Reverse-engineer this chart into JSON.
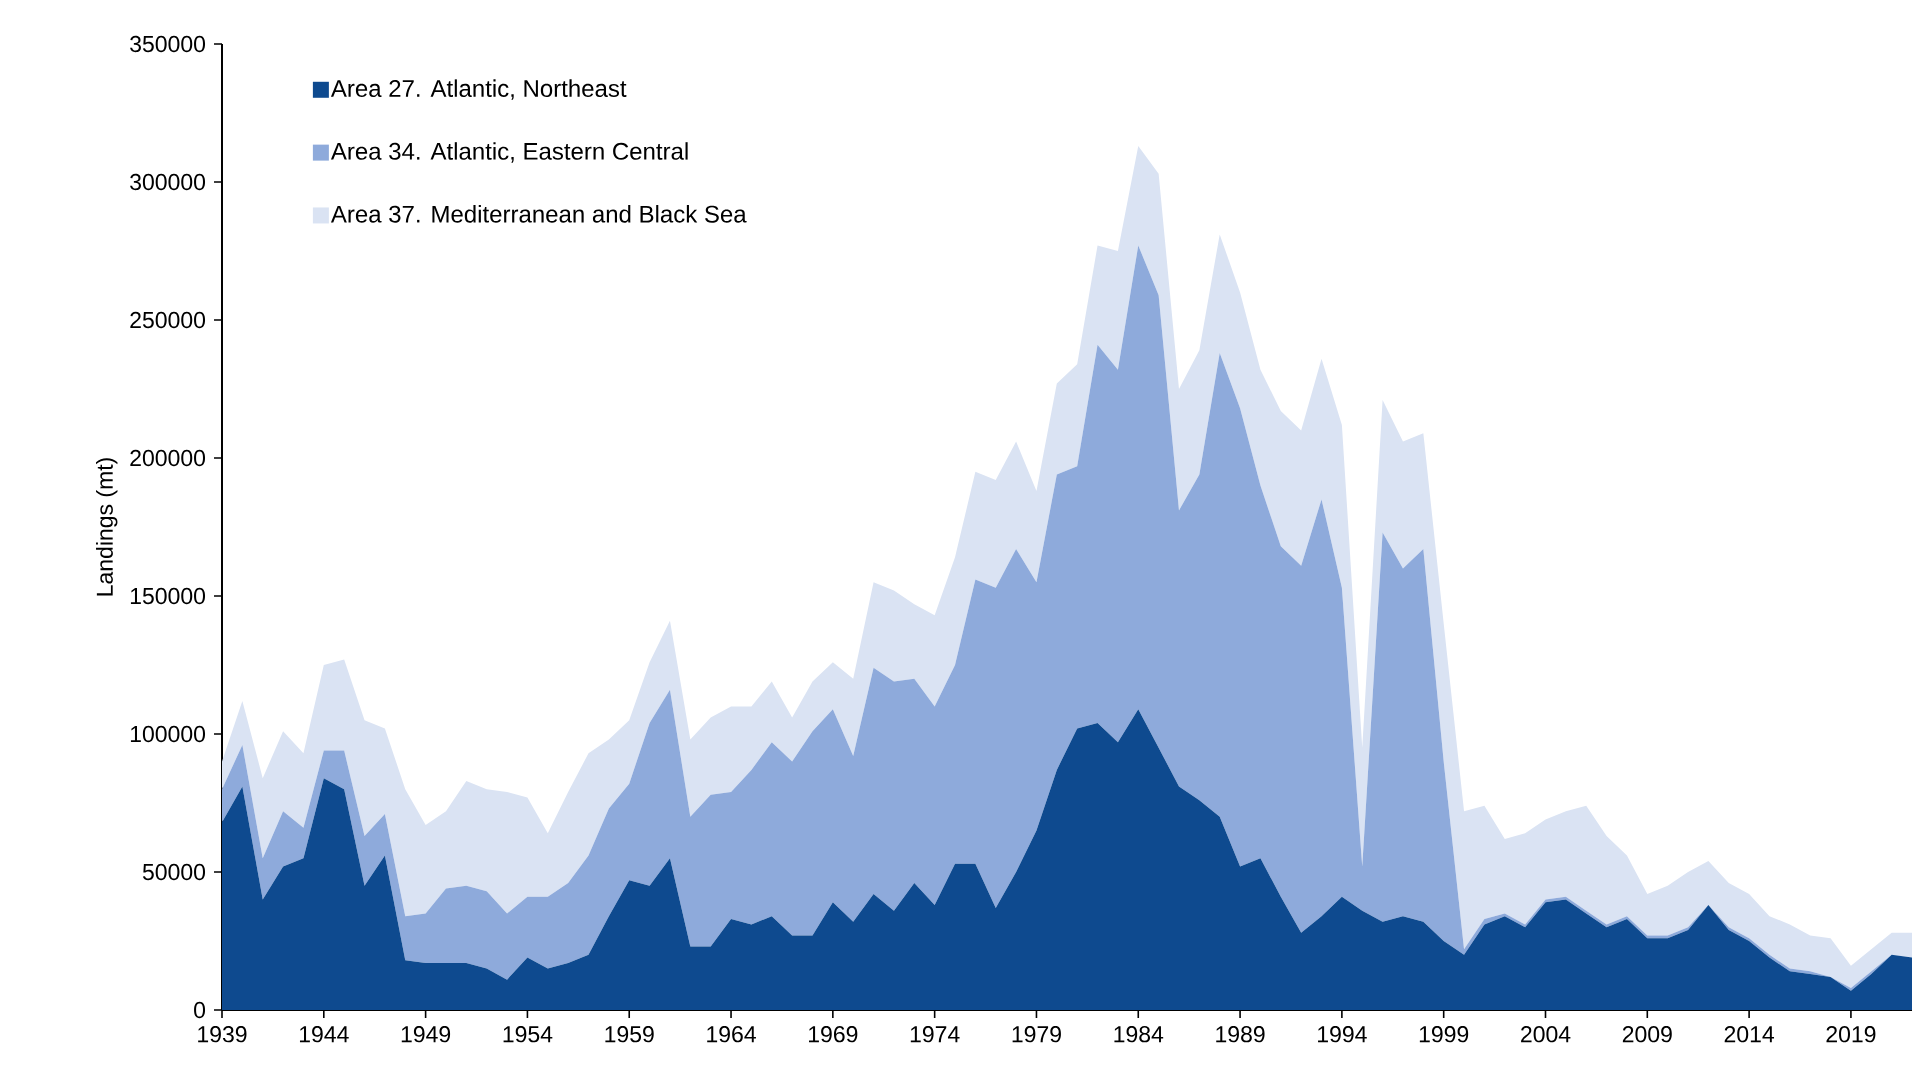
{
  "chart_data": {
    "type": "area",
    "stacked": true,
    "ylabel": "Landings (mt)",
    "x": [
      1939,
      1940,
      1941,
      1942,
      1943,
      1944,
      1945,
      1946,
      1947,
      1948,
      1949,
      1950,
      1951,
      1952,
      1953,
      1954,
      1955,
      1956,
      1957,
      1958,
      1959,
      1960,
      1961,
      1962,
      1963,
      1964,
      1965,
      1966,
      1967,
      1968,
      1969,
      1970,
      1971,
      1972,
      1973,
      1974,
      1975,
      1976,
      1977,
      1978,
      1979,
      1980,
      1981,
      1982,
      1983,
      1984,
      1985,
      1986,
      1987,
      1988,
      1989,
      1990,
      1991,
      1992,
      1993,
      1994,
      1995,
      1996,
      1997,
      1998,
      1999,
      2000,
      2001,
      2002,
      2003,
      2004,
      2005,
      2006,
      2007,
      2008,
      2009,
      2010,
      2011,
      2012,
      2013,
      2014,
      2015,
      2016,
      2017,
      2018,
      2019,
      2020,
      2021,
      2022
    ],
    "xlim": [
      1939,
      2022
    ],
    "xticks": [
      1939,
      1944,
      1949,
      1954,
      1959,
      1964,
      1969,
      1974,
      1979,
      1984,
      1989,
      1994,
      1999,
      2004,
      2009,
      2014,
      2019
    ],
    "ylim": [
      0,
      350000
    ],
    "yticks": [
      0,
      50000,
      100000,
      150000,
      200000,
      250000,
      300000,
      350000
    ],
    "legend": "top left",
    "series": [
      {
        "name": "Area 27. Atlantic, Northeast",
        "color": "#0e4a8f",
        "values": [
          68000,
          81000,
          40000,
          52000,
          55000,
          84000,
          80000,
          45000,
          56000,
          18000,
          17000,
          17000,
          17000,
          15000,
          11000,
          19000,
          15000,
          17000,
          20000,
          34000,
          47000,
          45000,
          55000,
          23000,
          23000,
          33000,
          31000,
          34000,
          27000,
          27000,
          39000,
          32000,
          42000,
          36000,
          46000,
          38000,
          53000,
          53000,
          37000,
          50000,
          65000,
          87000,
          102000,
          104000,
          97000,
          109000,
          95000,
          81000,
          76000,
          70000,
          52000,
          55000,
          41000,
          28000,
          34000,
          41000,
          36000,
          32000,
          34000,
          32000,
          25000,
          20000,
          31000,
          34000,
          30000,
          39000,
          40000,
          35000,
          30000,
          33000,
          26000,
          26000,
          29000,
          38000,
          29000,
          25000,
          19000,
          14000,
          13000,
          12000,
          7000,
          13000,
          20000,
          19000
        ]
      },
      {
        "name": "Area 34. Atlantic, Eastern Central",
        "color": "#8eaadb",
        "values": [
          12000,
          15000,
          15000,
          20000,
          11000,
          10000,
          14000,
          18000,
          15000,
          16000,
          18000,
          27000,
          28000,
          28000,
          24000,
          22000,
          26000,
          29000,
          36000,
          39000,
          35000,
          59000,
          61000,
          47000,
          55000,
          46000,
          56000,
          63000,
          63000,
          74000,
          70000,
          60000,
          82000,
          83000,
          74000,
          72000,
          72000,
          103000,
          116000,
          117000,
          90000,
          107000,
          95000,
          137000,
          135000,
          168000,
          164000,
          100000,
          118000,
          168000,
          166000,
          135000,
          127000,
          133000,
          151000,
          112000,
          16000,
          141000,
          126000,
          135000,
          65000,
          2000,
          2000,
          1000,
          1000,
          1000,
          1000,
          1000,
          1000,
          1000,
          1000,
          1000,
          1000,
          0,
          1000,
          1000,
          1000,
          1000,
          1000,
          0,
          1000,
          1000,
          0,
          0
        ]
      },
      {
        "name": "Area 37. Mediterranean and Black Sea",
        "color": "#dae3f3",
        "values": [
          10000,
          16000,
          29000,
          29000,
          27000,
          31000,
          33000,
          42000,
          31000,
          46000,
          32000,
          28000,
          38000,
          37000,
          44000,
          36000,
          23000,
          33000,
          37000,
          25000,
          23000,
          22000,
          25000,
          28000,
          28000,
          31000,
          23000,
          22000,
          16000,
          18000,
          17000,
          28000,
          31000,
          33000,
          27000,
          33000,
          39000,
          39000,
          39000,
          39000,
          33000,
          33000,
          37000,
          36000,
          43000,
          36000,
          44000,
          44000,
          45000,
          43000,
          42000,
          42000,
          49000,
          49000,
          51000,
          59000,
          43000,
          48000,
          46000,
          42000,
          50000,
          50000,
          41000,
          27000,
          33000,
          29000,
          31000,
          38000,
          32000,
          22000,
          15000,
          18000,
          20000,
          16000,
          16000,
          16000,
          14000,
          16000,
          13000,
          14000,
          8000,
          8000,
          8000,
          9000
        ]
      }
    ]
  }
}
